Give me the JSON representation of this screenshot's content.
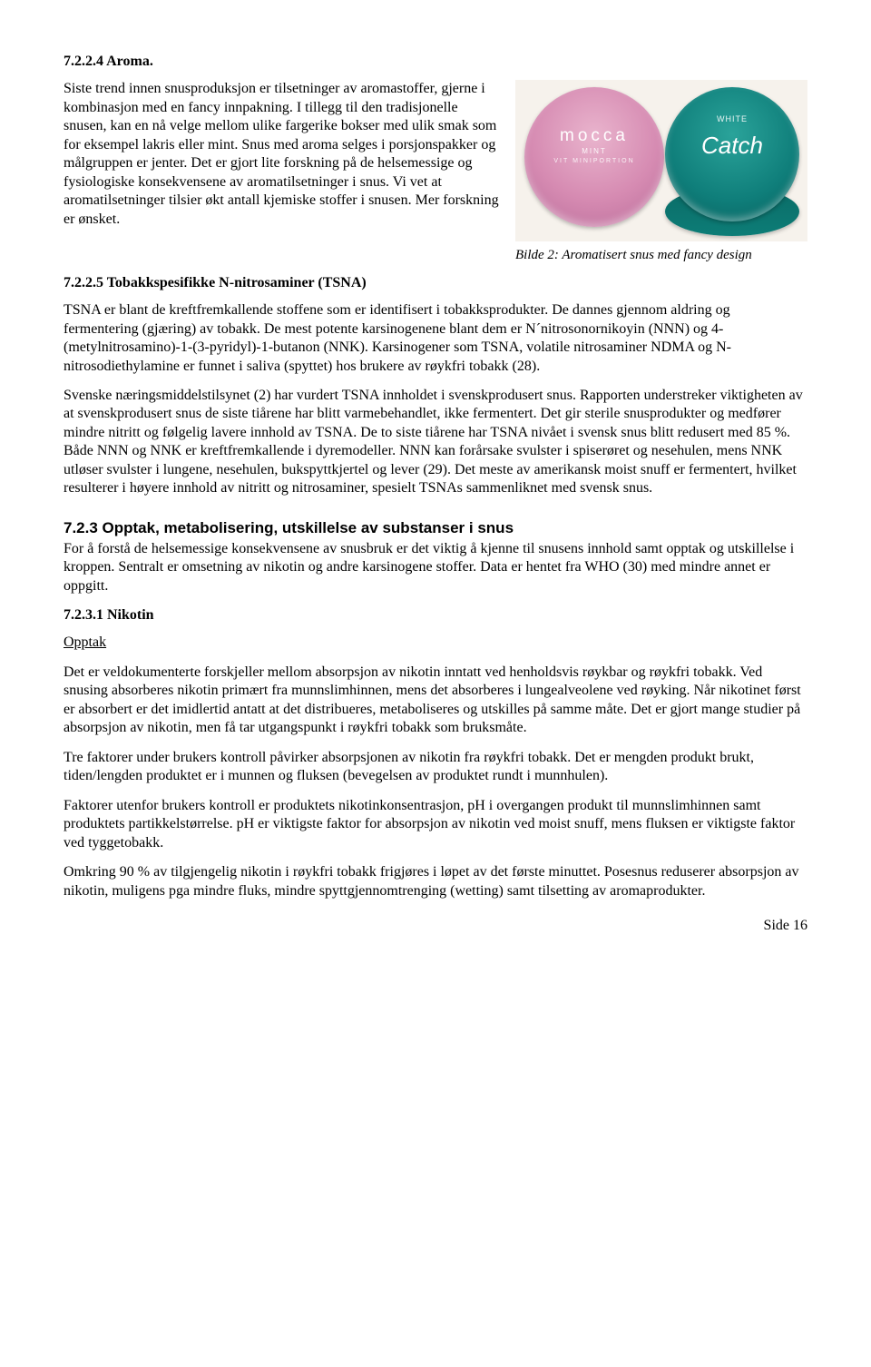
{
  "s724": {
    "heading": "7.2.2.4   Aroma.",
    "p1": "Siste trend innen snusproduksjon er tilsetninger av aromastoffer, gjerne i kombinasjon med en fancy innpakning. I tillegg til den tradisjonelle snusen, kan en nå velge mellom ulike fargerike bokser med ulik smak som for eksempel lakris eller mint. Snus med aroma selges i porsjonspakker og målgruppen er jenter. Det er gjort lite forskning på de helsemessige og fysiologiske konsekvensene av aromatilsetninger i snus. Vi vet at aromatilsetninger tilsier økt antall kjemiske stoffer i snusen. Mer forskning er ønsket."
  },
  "figure": {
    "caption": "Bilde 2: Aromatisert snus med fancy design",
    "mocca": "mocca",
    "mocca_sub1": "MINT",
    "mocca_sub2": "VIT MINIPORTION",
    "catch_white": "WHITE",
    "catch": "Catch",
    "side": "Catch"
  },
  "s725": {
    "heading": "7.2.2.5   Tobakkspesifikke N-nitrosaminer (TSNA)",
    "p1": "TSNA er blant de kreftfremkallende stoffene som er identifisert i tobakksprodukter. De dannes gjennom aldring og fermentering (gjæring) av tobakk. De mest potente karsinogenene blant dem er N´nitrosonornikoyin (NNN) og 4-(metylnitrosamino)-1-(3-pyridyl)-1-butanon (NNK). Karsinogener som TSNA, volatile nitrosaminer NDMA og N-nitrosodiethylamine er funnet i saliva (spyttet) hos brukere av røykfri tobakk (28).",
    "p2": "Svenske næringsmiddelstilsynet (2) har vurdert TSNA innholdet i svenskprodusert snus. Rapporten understreker viktigheten av at svenskprodusert snus de siste tiårene har blitt varmebehandlet, ikke fermentert. Det gir sterile snusprodukter og medfører mindre nitritt og følgelig lavere innhold av TSNA. De to siste tiårene har TSNA nivået i svensk snus blitt redusert med 85 %. Både NNN og NNK er kreftfremkallende i dyremodeller. NNN kan forårsake svulster i spiserøret og nesehulen, mens NNK utløser svulster i lungene, nesehulen, bukspyttkjertel og lever (29). Det meste av amerikansk moist snuff er fermentert, hvilket resulterer i høyere innhold av nitritt og nitrosaminer, spesielt TSNAs sammenliknet med svensk snus."
  },
  "s723m": {
    "heading": "7.2.3  Opptak, metabolisering, utskillelse av substanser i snus",
    "p1": "For å forstå de helsemessige konsekvensene av snusbruk er det viktig å kjenne til snusens innhold samt opptak og utskillelse i kroppen. Sentralt er omsetning av nikotin og andre karsinogene stoffer. Data er hentet fra WHO (30) med mindre annet er oppgitt."
  },
  "s7231": {
    "heading": "7.2.3.1   Nikotin",
    "sub": "Opptak",
    "p1": "Det er veldokumenterte forskjeller mellom absorpsjon av nikotin inntatt ved henholdsvis røykbar og røykfri tobakk. Ved snusing absorberes nikotin primært fra munnslimhinnen, mens det absorberes i lungealveolene ved røyking. Når nikotinet først er absorbert er det imidlertid antatt at det distribueres, metaboliseres og utskilles på samme måte. Det er gjort mange studier på absorpsjon av nikotin, men få tar utgangspunkt i røykfri tobakk som bruksmåte.",
    "p2": "Tre faktorer under brukers kontroll påvirker absorpsjonen av nikotin fra røykfri tobakk. Det er mengden produkt brukt, tiden/lengden produktet er i munnen og fluksen (bevegelsen av produktet rundt i munnhulen).",
    "p3": "Faktorer utenfor brukers kontroll er produktets nikotinkonsentrasjon, pH i overgangen produkt til munnslimhinnen samt produktets partikkelstørrelse. pH er viktigste faktor for absorpsjon av nikotin ved moist snuff, mens fluksen er viktigste faktor ved tyggetobakk.",
    "p4": "Omkring 90 % av tilgjengelig nikotin i røykfri tobakk frigjøres i løpet av det første minuttet. Posesnus reduserer absorpsjon av nikotin, muligens pga mindre fluks, mindre spyttgjennomtrenging (wetting) samt tilsetting av aromaprodukter."
  },
  "footer": "Side 16"
}
